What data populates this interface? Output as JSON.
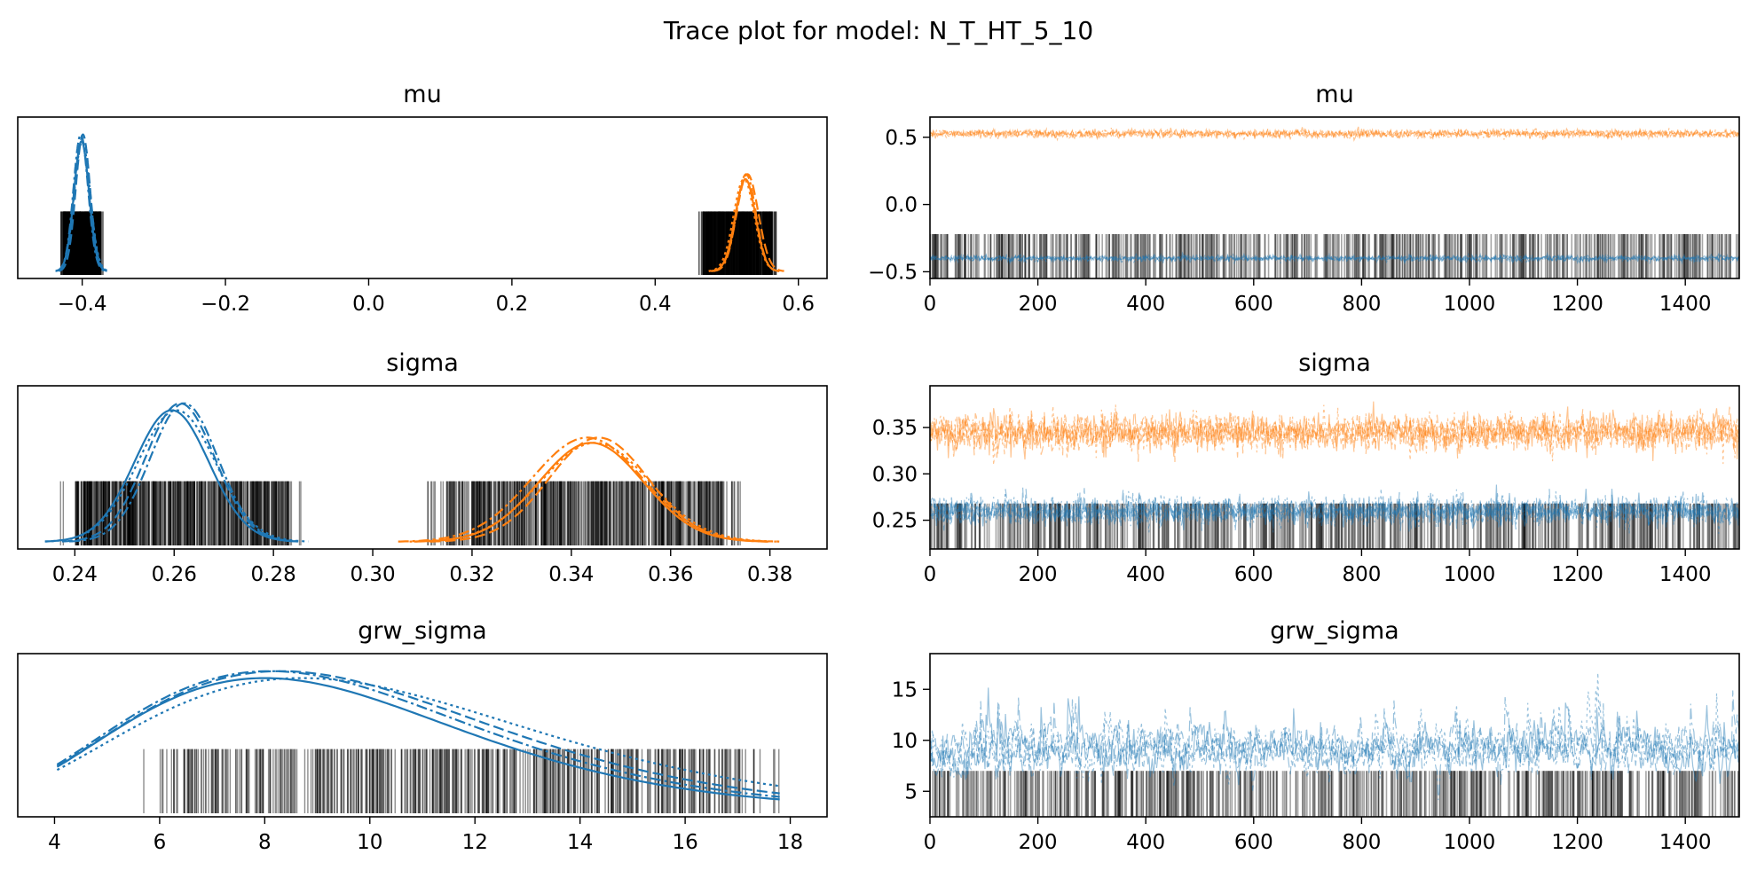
{
  "figure_title": "Trace plot for model: N_T_HT_5_10",
  "colors": {
    "chain_group_0": "#1f77b4",
    "chain_group_1": "#ff7f0e",
    "rug": "#000000",
    "axis": "#000000"
  },
  "chart_data": [
    {
      "type": "line",
      "kind": "kde",
      "title": "mu",
      "xlim": [
        -0.49,
        0.64
      ],
      "ylim": [
        0,
        1
      ],
      "y_ticks_shown": false,
      "x_ticks": [
        "−0.4",
        "−0.2",
        "0.0",
        "0.2",
        "0.4",
        "0.6"
      ],
      "x_tick_values": [
        -0.4,
        -0.2,
        0.0,
        0.2,
        0.4,
        0.6
      ],
      "series": [
        {
          "color": "#1f77b4",
          "peak": 0.93,
          "densities": [
            {
              "mean": -0.401,
              "sd": 0.0105
            },
            {
              "mean": -0.399,
              "sd": 0.01
            },
            {
              "mean": -0.4,
              "sd": 0.011
            },
            {
              "mean": -0.402,
              "sd": 0.0102
            }
          ]
        },
        {
          "color": "#ff7f0e",
          "peak": 0.66,
          "densities": [
            {
              "mean": 0.526,
              "sd": 0.014
            },
            {
              "mean": 0.529,
              "sd": 0.015
            },
            {
              "mean": 0.524,
              "sd": 0.0145
            },
            {
              "mean": 0.527,
              "sd": 0.0135
            }
          ]
        }
      ],
      "rug_ranges": [
        [
          -0.43,
          -0.37
        ],
        [
          0.46,
          0.57
        ]
      ]
    },
    {
      "type": "line",
      "kind": "trace",
      "title": "mu",
      "xlim": [
        0,
        1500
      ],
      "ylim": [
        -0.55,
        0.65
      ],
      "x_ticks": [
        "0",
        "200",
        "400",
        "600",
        "800",
        "1000",
        "1200",
        "1400"
      ],
      "x_tick_values": [
        0,
        200,
        400,
        600,
        800,
        1000,
        1200,
        1400
      ],
      "y_ticks": [
        "−0.5",
        "0.0",
        "0.5"
      ],
      "y_tick_values": [
        -0.5,
        0.0,
        0.5
      ],
      "series": [
        {
          "color": "#ff7f0e",
          "mean": 0.527,
          "sd": 0.015
        },
        {
          "color": "#1f77b4",
          "mean": -0.4,
          "sd": 0.011
        }
      ],
      "rug_band": [
        -0.55,
        -0.22
      ]
    },
    {
      "type": "line",
      "kind": "kde",
      "title": "sigma",
      "xlim": [
        0.2285,
        0.3915
      ],
      "ylim": [
        0,
        1
      ],
      "y_ticks_shown": false,
      "x_ticks": [
        "0.24",
        "0.26",
        "0.28",
        "0.30",
        "0.32",
        "0.34",
        "0.36",
        "0.38"
      ],
      "x_tick_values": [
        0.24,
        0.26,
        0.28,
        0.3,
        0.32,
        0.34,
        0.36,
        0.38
      ],
      "series": [
        {
          "color": "#1f77b4",
          "peak": 0.93,
          "densities": [
            {
              "mean": 0.2595,
              "sd": 0.0075
            },
            {
              "mean": 0.2612,
              "sd": 0.007
            },
            {
              "mean": 0.2605,
              "sd": 0.0078
            },
            {
              "mean": 0.262,
              "sd": 0.0068
            }
          ]
        },
        {
          "color": "#ff7f0e",
          "peak": 0.7,
          "densities": [
            {
              "mean": 0.344,
              "sd": 0.0105
            },
            {
              "mean": 0.3455,
              "sd": 0.01
            },
            {
              "mean": 0.3448,
              "sd": 0.011
            },
            {
              "mean": 0.3432,
              "sd": 0.0112
            }
          ]
        }
      ],
      "rug_ranges": [
        [
          0.237,
          0.286
        ],
        [
          0.311,
          0.375
        ]
      ]
    },
    {
      "type": "line",
      "kind": "trace",
      "title": "sigma",
      "xlim": [
        0,
        1500
      ],
      "ylim": [
        0.219,
        0.395
      ],
      "x_ticks": [
        "0",
        "200",
        "400",
        "600",
        "800",
        "1000",
        "1200",
        "1400"
      ],
      "x_tick_values": [
        0,
        200,
        400,
        600,
        800,
        1000,
        1200,
        1400
      ],
      "y_ticks": [
        "0.25",
        "0.30",
        "0.35"
      ],
      "y_tick_values": [
        0.25,
        0.3,
        0.35
      ],
      "series": [
        {
          "color": "#ff7f0e",
          "mean": 0.345,
          "sd": 0.01
        },
        {
          "color": "#1f77b4",
          "mean": 0.26,
          "sd": 0.0075
        }
      ],
      "rug_band": [
        0.219,
        0.268
      ]
    },
    {
      "type": "line",
      "kind": "kde",
      "title": "grw_sigma",
      "xlim": [
        3.3,
        18.7
      ],
      "ylim": [
        0,
        1
      ],
      "y_ticks_shown": false,
      "x_ticks": [
        "4",
        "6",
        "8",
        "10",
        "12",
        "14",
        "16",
        "18"
      ],
      "x_tick_values": [
        4,
        6,
        8,
        10,
        12,
        14,
        16,
        18
      ],
      "series": [
        {
          "color": "#1f77b4",
          "peak": 0.93,
          "densities": [
            {
              "mode": 8.0,
              "shape": 7.0
            },
            {
              "mode": 8.3,
              "shape": 6.6
            },
            {
              "mode": 8.7,
              "shape": 6.2
            },
            {
              "mode": 8.1,
              "shape": 6.8
            }
          ]
        }
      ],
      "rug_ranges": [
        [
          5.5,
          17.8
        ]
      ]
    },
    {
      "type": "line",
      "kind": "trace",
      "title": "grw_sigma",
      "xlim": [
        0,
        1500
      ],
      "ylim": [
        2.5,
        18.5
      ],
      "x_ticks": [
        "0",
        "200",
        "400",
        "600",
        "800",
        "1000",
        "1200",
        "1400"
      ],
      "x_tick_values": [
        0,
        200,
        400,
        600,
        800,
        1000,
        1200,
        1400
      ],
      "y_ticks": [
        "5",
        "10",
        "15"
      ],
      "y_tick_values": [
        5,
        10,
        15
      ],
      "series": [
        {
          "color": "#1f77b4",
          "mean": 9.0,
          "sd": 2.3
        }
      ],
      "rug_band": [
        2.5,
        7.0
      ]
    }
  ]
}
